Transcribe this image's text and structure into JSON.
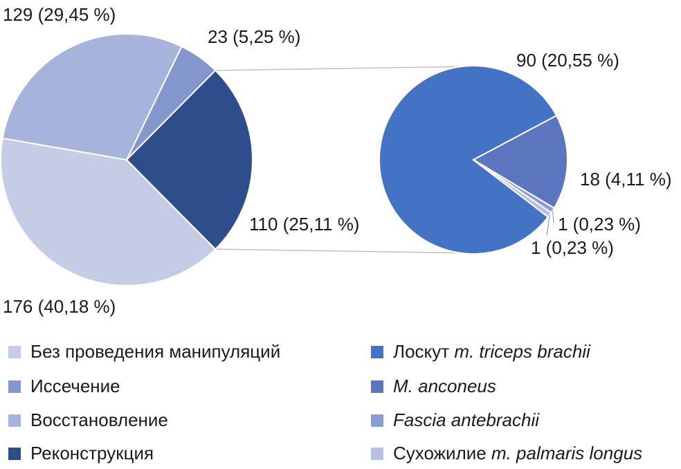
{
  "chart_data": {
    "type": "pie",
    "main_pie": {
      "slices": [
        {
          "label": "Без проведения манипуляций",
          "value": 176,
          "percent": "40,18 %",
          "color": "#c5cce6",
          "display": "176 (40,18 %)"
        },
        {
          "label": "Восстановление",
          "value": 129,
          "percent": "29,45 %",
          "color": "#a6b3da",
          "display": "129 (29,45 %)"
        },
        {
          "label": "Иссечение",
          "value": 23,
          "percent": "5,25 %",
          "color": "#8497cd",
          "display": "23 (5,25 %)"
        },
        {
          "label": "Реконструкция",
          "value": 110,
          "percent": "25,11 %",
          "color": "#2f4d8a",
          "display": "110 (25,11 %)"
        }
      ]
    },
    "sub_pie": {
      "slices": [
        {
          "label_parts": [
            {
              "text": "Лоскут ",
              "italic": false
            },
            {
              "text": "m. triceps brachii",
              "italic": true
            }
          ],
          "value": 90,
          "percent": "20,55 %",
          "color": "#4472c4",
          "display": "90 (20,55 %)"
        },
        {
          "label_parts": [
            {
              "text": "M. anconeus",
              "italic": true
            }
          ],
          "value": 18,
          "percent": "4,11 %",
          "color": "#5b76bf",
          "display": "18 (4,11 %)"
        },
        {
          "label_parts": [
            {
              "text": "Fascia antebrachii",
              "italic": true
            }
          ],
          "value": 1,
          "percent": "0,23 %",
          "color": "#8a9ed3",
          "display": "1 (0,23 %)"
        },
        {
          "label_parts": [
            {
              "text": "Сухожилие ",
              "italic": false
            },
            {
              "text": "m. palmaris longus",
              "italic": true
            }
          ],
          "value": 1,
          "percent": "0,23 %",
          "color": "#b4c0e4",
          "display": "1 (0,23 %)"
        }
      ]
    },
    "legend_placement": "bottom"
  }
}
